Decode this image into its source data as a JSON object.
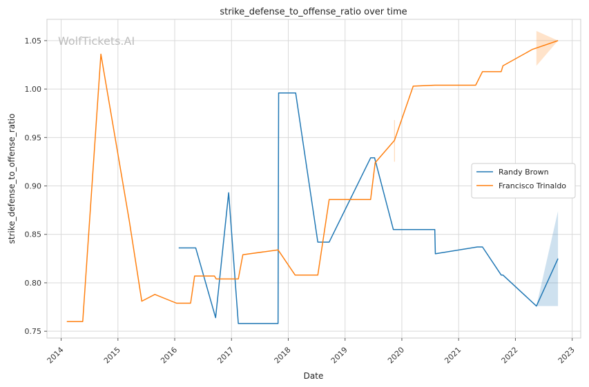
{
  "chart_data": {
    "type": "line",
    "title": "strike_defense_to_offense_ratio over time",
    "xlabel": "Date",
    "ylabel": "strike_defense_to_offense_ratio",
    "watermark": "WolfTickets.AI",
    "xlim": [
      2013.75,
      2023.15
    ],
    "ylim": [
      0.743,
      1.072
    ],
    "x_ticks": [
      2014,
      2015,
      2016,
      2017,
      2018,
      2019,
      2020,
      2021,
      2022,
      2023
    ],
    "x_tick_labels": [
      "2014",
      "2015",
      "2016",
      "2017",
      "2018",
      "2019",
      "2020",
      "2021",
      "2022",
      "2023"
    ],
    "y_ticks": [
      0.75,
      0.8,
      0.85,
      0.9,
      0.95,
      1.0,
      1.05
    ],
    "y_tick_labels": [
      "0.75",
      "0.80",
      "0.85",
      "0.90",
      "0.95",
      "1.00",
      "1.05"
    ],
    "grid": true,
    "legend_position": "right",
    "series": [
      {
        "name": "Randy Brown",
        "color": "#1f77b4",
        "x": [
          2016.07,
          2016.37,
          2016.72,
          2016.95,
          2017.12,
          2017.82,
          2017.83,
          2018.13,
          2018.52,
          2018.72,
          2019.45,
          2019.52,
          2019.85,
          2020.58,
          2020.59,
          2021.33,
          2021.42,
          2021.75,
          2021.78,
          2022.37,
          2022.75
        ],
        "y": [
          0.836,
          0.836,
          0.764,
          0.893,
          0.758,
          0.758,
          0.996,
          0.996,
          0.842,
          0.842,
          0.929,
          0.929,
          0.855,
          0.855,
          0.83,
          0.837,
          0.837,
          0.808,
          0.808,
          0.776,
          0.825
        ],
        "band": {
          "x": [
            2022.37,
            2022.75
          ],
          "lower": [
            0.776,
            0.776
          ],
          "upper": [
            0.776,
            0.874
          ]
        }
      },
      {
        "name": "Francisco Trinaldo",
        "color": "#ff7f0e",
        "x": [
          2014.1,
          2014.38,
          2014.7,
          2015.2,
          2015.42,
          2015.65,
          2016.03,
          2016.28,
          2016.35,
          2016.7,
          2016.73,
          2017.12,
          2017.2,
          2017.82,
          2018.12,
          2018.52,
          2018.72,
          2019.45,
          2019.53,
          2019.87,
          2020.2,
          2020.58,
          2021.3,
          2021.42,
          2021.75,
          2021.78,
          2022.3,
          2022.75
        ],
        "y": [
          0.76,
          0.76,
          1.036,
          0.864,
          0.781,
          0.788,
          0.779,
          0.779,
          0.807,
          0.807,
          0.804,
          0.804,
          0.829,
          0.834,
          0.808,
          0.808,
          0.886,
          0.886,
          0.924,
          0.947,
          1.003,
          1.004,
          1.004,
          1.018,
          1.018,
          1.024,
          1.041,
          1.05
        ],
        "band": {
          "x": [
            2022.37,
            2022.75
          ],
          "lower": [
            1.024,
            1.05
          ],
          "upper": [
            1.06,
            1.05
          ]
        },
        "spike": {
          "x": 2019.87,
          "lower": 0.925,
          "upper": 0.968
        }
      }
    ]
  }
}
